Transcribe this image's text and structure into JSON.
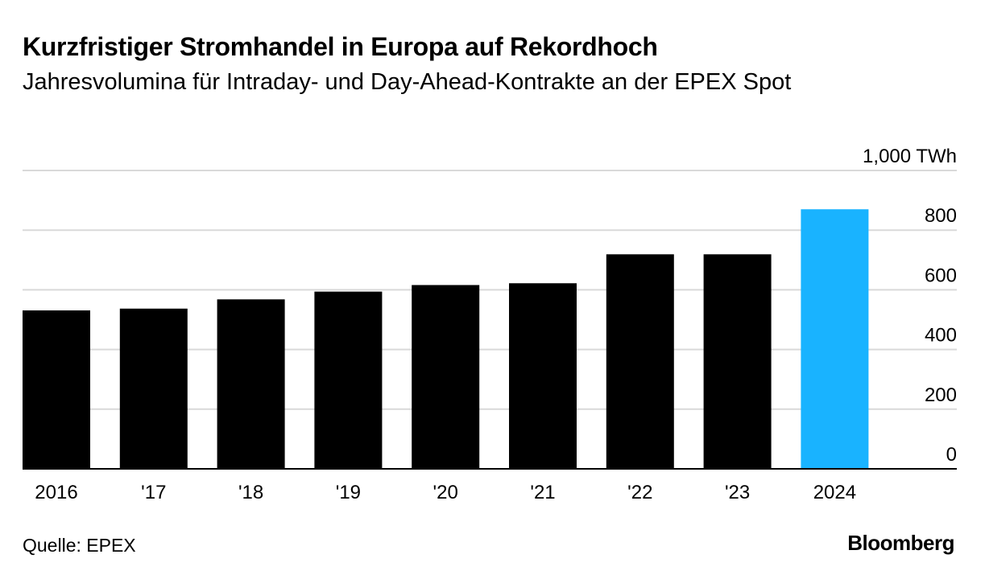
{
  "header": {
    "title": "Kurzfristiger Stromhandel in Europa auf Rekordhoch",
    "subtitle": "Jahresvolumina für Intraday- und Day-Ahead-Kontrakte an der EPEX Spot"
  },
  "footer": {
    "source": "Quelle: EPEX",
    "brand": "Bloomberg"
  },
  "colors": {
    "bar_default": "#000000",
    "bar_highlight": "#19b3ff",
    "gridline": "#d9d9d9",
    "baseline": "#000000"
  },
  "chart_data": {
    "type": "bar",
    "title": "Kurzfristiger Stromhandel in Europa auf Rekordhoch",
    "subtitle": "Jahresvolumina für Intraday- und Day-Ahead-Kontrakte an der EPEX Spot",
    "xlabel": "",
    "ylabel": "TWh",
    "categories": [
      "2016",
      "'17",
      "'18",
      "'19",
      "'20",
      "'21",
      "'22",
      "'23",
      "2024"
    ],
    "values": [
      531,
      537,
      568,
      594,
      616,
      622,
      719,
      719,
      870
    ],
    "highlight_index": 8,
    "ylim": [
      0,
      1000
    ],
    "yticks": [
      0,
      200,
      400,
      600,
      800,
      1000
    ],
    "ytick_labels": [
      "0",
      "200",
      "400",
      "600",
      "800",
      "1,000 TWh"
    ],
    "grid": true,
    "axis_side": "right"
  }
}
